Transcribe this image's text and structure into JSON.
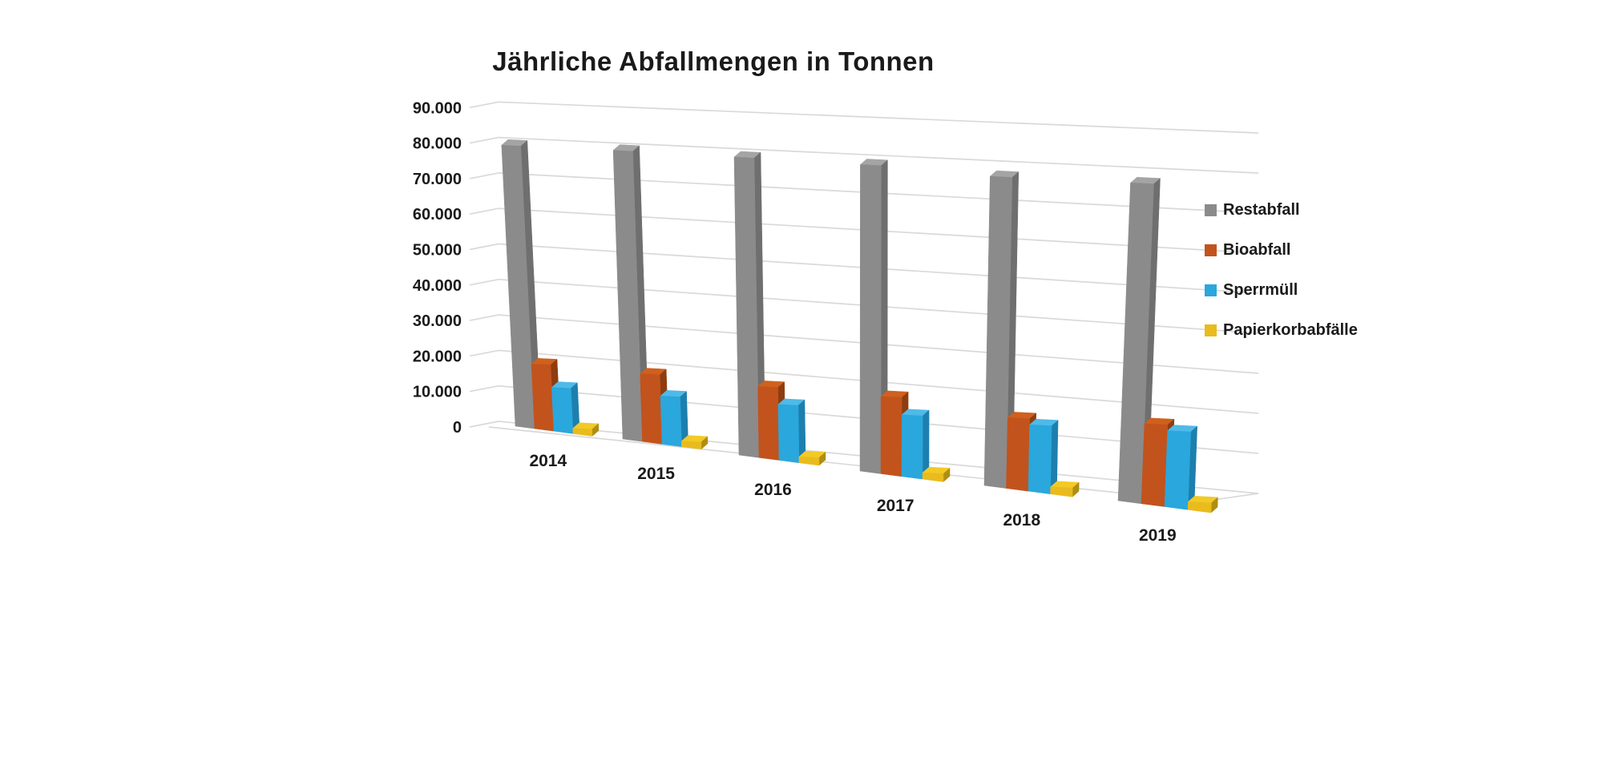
{
  "chart_data": {
    "type": "bar",
    "variant": "3d-clustered-column",
    "title": "Jährliche Abfallmengen in Tonnen",
    "categories": [
      "2014",
      "2015",
      "2016",
      "2017",
      "2018",
      "2019"
    ],
    "series": [
      {
        "name": "Restabfall",
        "values": [
          79000,
          78000,
          77500,
          76500,
          73500,
          71500
        ],
        "colors": {
          "front": "#8b8b8b",
          "side": "#6f6f6f",
          "top": "#a4a4a4"
        }
      },
      {
        "name": "Bioabfall",
        "values": [
          18200,
          18300,
          18500,
          19300,
          16800,
          18000
        ],
        "colors": {
          "front": "#c2531c",
          "side": "#8e3d10",
          "top": "#d0601d"
        }
      },
      {
        "name": "Sperrmüll",
        "values": [
          12300,
          13000,
          14500,
          15400,
          15800,
          17100
        ],
        "colors": {
          "front": "#2aa7dc",
          "side": "#1d7fae",
          "top": "#4fbae8"
        }
      },
      {
        "name": "Papierkorbabfälle",
        "values": [
          1500,
          1500,
          1600,
          1600,
          1700,
          1800
        ],
        "colors": {
          "front": "#e9bb1d",
          "side": "#b08d13",
          "top": "#f1ca26"
        }
      }
    ],
    "xlabel": "",
    "ylabel": "",
    "ylim": [
      0,
      90000
    ],
    "ytick_values": [
      0,
      10000,
      20000,
      30000,
      40000,
      50000,
      60000,
      70000,
      80000,
      90000
    ],
    "ytick_labels": [
      "0",
      "10.000",
      "20.000",
      "30.000",
      "40.000",
      "50.000",
      "60.000",
      "70.000",
      "80.000",
      "90.000"
    ],
    "legend_position": "right",
    "grid": true,
    "background_color": "#ffffff",
    "text_color": "#1a1a1a",
    "gridline_color": "#d9d9d9"
  }
}
